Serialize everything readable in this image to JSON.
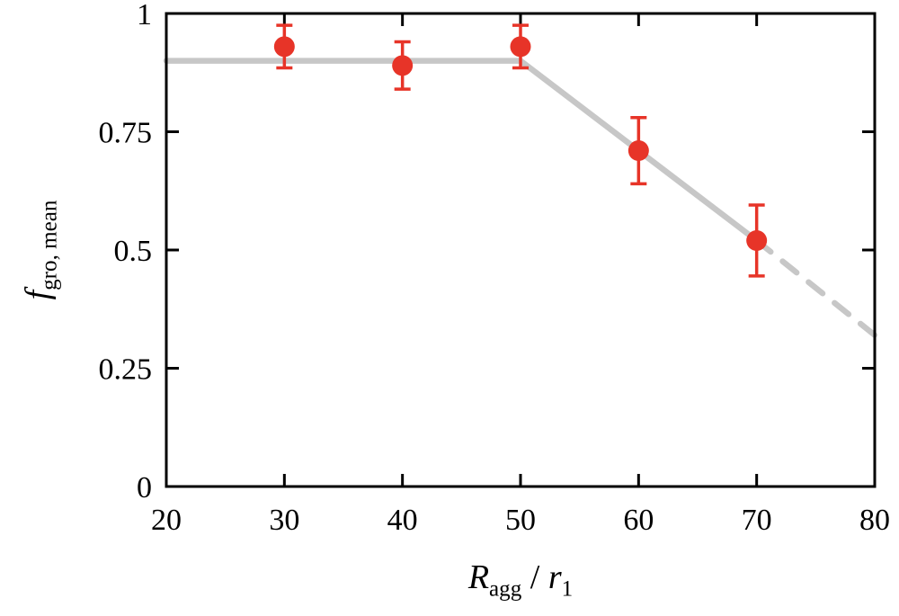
{
  "chart_data": {
    "type": "scatter",
    "title": "",
    "xlabel": "R_agg / r_1",
    "ylabel": "f_gro, mean",
    "xlim": [
      20,
      80
    ],
    "ylim": [
      0,
      1
    ],
    "x_ticks": [
      20,
      30,
      40,
      50,
      60,
      70,
      80
    ],
    "x_tick_labels": [
      "20",
      "30",
      "40",
      "50",
      "60",
      "70",
      "80"
    ],
    "y_ticks": [
      0,
      0.25,
      0.5,
      0.75,
      1
    ],
    "y_tick_labels": [
      "0",
      "0.25",
      "0.5",
      "0.75",
      "1"
    ],
    "grid": false,
    "legend": null,
    "series": [
      {
        "name": "mean growth fraction measurements",
        "type": "scatter",
        "marker": "circle",
        "color": "#e73428",
        "x": [
          30,
          40,
          50,
          60,
          70
        ],
        "y": [
          0.93,
          0.89,
          0.93,
          0.71,
          0.52
        ],
        "yerr": [
          0.045,
          0.05,
          0.045,
          0.07,
          0.075
        ]
      }
    ],
    "model_line": {
      "name": "piecewise model fit",
      "color": "#c7c7c7",
      "solid_points": [
        [
          20,
          0.9
        ],
        [
          50,
          0.9
        ],
        [
          70,
          0.52
        ]
      ],
      "dashed_points": [
        [
          70,
          0.52
        ],
        [
          80,
          0.32
        ]
      ]
    }
  },
  "labels": {
    "ylabel_var": "f",
    "ylabel_sub": "gro, mean",
    "xlabel_var1": "R",
    "xlabel_sub1": "agg",
    "xlabel_mid": " / ",
    "xlabel_var2": "r",
    "xlabel_sub2": "1"
  }
}
